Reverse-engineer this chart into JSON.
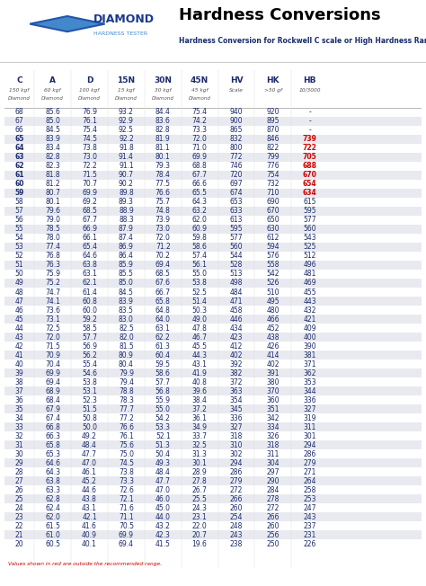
{
  "title": "Hardness Conversions",
  "subtitle": "Hardness Conversion for Rockwell C scale or High Hardness Range",
  "columns": [
    "C",
    "A",
    "D",
    "15N",
    "30N",
    "45N",
    "HV",
    "HK",
    "HB"
  ],
  "col_sub1": [
    "150 kgf",
    "60 kgf",
    "100 kgf",
    "15 kgf",
    "30 kgf",
    "45 kgf",
    "Scale",
    ">50 gf",
    "10/3000"
  ],
  "col_sub2": [
    "Diamond",
    "Diamond",
    "Diamond",
    "Diamond",
    "Diamond",
    "Diamond",
    "",
    "",
    ""
  ],
  "red_note": "Values shown in red are outside the recommended range.",
  "rows": [
    [
      68,
      85.6,
      76.9,
      93.2,
      84.4,
      75.4,
      940,
      920,
      "-"
    ],
    [
      67,
      85.0,
      76.1,
      92.9,
      83.6,
      74.2,
      900,
      895,
      "-"
    ],
    [
      66,
      84.5,
      75.4,
      92.5,
      82.8,
      73.3,
      865,
      870,
      "-"
    ],
    [
      65,
      83.9,
      74.5,
      92.2,
      81.9,
      72.0,
      832,
      846,
      "739"
    ],
    [
      64,
      83.4,
      73.8,
      91.8,
      81.1,
      71.0,
      800,
      822,
      "722"
    ],
    [
      63,
      82.8,
      73.0,
      91.4,
      80.1,
      69.9,
      772,
      799,
      "705"
    ],
    [
      62,
      82.3,
      72.2,
      91.1,
      79.3,
      68.8,
      746,
      776,
      "688"
    ],
    [
      61,
      81.8,
      71.5,
      90.7,
      78.4,
      67.7,
      720,
      754,
      "670"
    ],
    [
      60,
      81.2,
      70.7,
      90.2,
      77.5,
      66.6,
      697,
      732,
      "654"
    ],
    [
      59,
      80.7,
      69.9,
      89.8,
      76.6,
      65.5,
      674,
      710,
      "634"
    ],
    [
      58,
      80.1,
      69.2,
      89.3,
      75.7,
      64.3,
      653,
      690,
      615
    ],
    [
      57,
      79.6,
      68.5,
      88.9,
      74.8,
      63.2,
      633,
      670,
      595
    ],
    [
      56,
      79.0,
      67.7,
      88.3,
      73.9,
      62.0,
      613,
      650,
      577
    ],
    [
      55,
      78.5,
      66.9,
      87.9,
      73.0,
      60.9,
      595,
      630,
      560
    ],
    [
      54,
      78.0,
      66.1,
      87.4,
      72.0,
      59.8,
      577,
      612,
      543
    ],
    [
      53,
      77.4,
      65.4,
      86.9,
      71.2,
      58.6,
      560,
      594,
      525
    ],
    [
      52,
      76.8,
      64.6,
      86.4,
      70.2,
      57.4,
      544,
      576,
      512
    ],
    [
      51,
      76.3,
      63.8,
      85.9,
      69.4,
      56.1,
      528,
      558,
      496
    ],
    [
      50,
      75.9,
      63.1,
      85.5,
      68.5,
      55.0,
      513,
      542,
      481
    ],
    [
      49,
      75.2,
      62.1,
      85.0,
      67.6,
      53.8,
      498,
      526,
      469
    ],
    [
      48,
      74.7,
      61.4,
      84.5,
      66.7,
      52.5,
      484,
      510,
      455
    ],
    [
      47,
      74.1,
      60.8,
      83.9,
      65.8,
      51.4,
      471,
      495,
      443
    ],
    [
      46,
      73.6,
      60.0,
      83.5,
      64.8,
      50.3,
      458,
      480,
      432
    ],
    [
      45,
      73.1,
      59.2,
      83.0,
      64.0,
      49.0,
      446,
      466,
      421
    ],
    [
      44,
      72.5,
      58.5,
      82.5,
      63.1,
      47.8,
      434,
      452,
      409
    ],
    [
      43,
      72.0,
      57.7,
      82.0,
      62.2,
      46.7,
      423,
      438,
      400
    ],
    [
      42,
      71.5,
      56.9,
      81.5,
      61.3,
      45.5,
      412,
      426,
      390
    ],
    [
      41,
      70.9,
      56.2,
      80.9,
      60.4,
      44.3,
      402,
      414,
      381
    ],
    [
      40,
      70.4,
      55.4,
      80.4,
      59.5,
      43.1,
      392,
      402,
      371
    ],
    [
      39,
      69.9,
      54.6,
      79.9,
      58.6,
      41.9,
      382,
      391,
      362
    ],
    [
      38,
      69.4,
      53.8,
      79.4,
      57.7,
      40.8,
      372,
      380,
      353
    ],
    [
      37,
      68.9,
      53.1,
      78.8,
      56.8,
      39.6,
      363,
      370,
      344
    ],
    [
      36,
      68.4,
      52.3,
      78.3,
      55.9,
      38.4,
      354,
      360,
      336
    ],
    [
      35,
      67.9,
      51.5,
      77.7,
      55.0,
      37.2,
      345,
      351,
      327
    ],
    [
      34,
      67.4,
      50.8,
      77.2,
      54.2,
      36.1,
      336,
      342,
      319
    ],
    [
      33,
      66.8,
      50.0,
      76.6,
      53.3,
      34.9,
      327,
      334,
      311
    ],
    [
      32,
      66.3,
      49.2,
      76.1,
      52.1,
      33.7,
      318,
      326,
      301
    ],
    [
      31,
      65.8,
      48.4,
      75.6,
      51.3,
      32.5,
      310,
      318,
      294
    ],
    [
      30,
      65.3,
      47.7,
      75.0,
      50.4,
      31.3,
      302,
      311,
      286
    ],
    [
      29,
      64.6,
      47.0,
      74.5,
      49.3,
      30.1,
      294,
      304,
      279
    ],
    [
      28,
      64.3,
      46.1,
      73.8,
      48.4,
      28.9,
      286,
      297,
      271
    ],
    [
      27,
      63.8,
      45.2,
      73.3,
      47.7,
      27.8,
      279,
      290,
      264
    ],
    [
      26,
      63.3,
      44.6,
      72.6,
      47.0,
      26.7,
      272,
      284,
      258
    ],
    [
      25,
      62.8,
      43.8,
      72.1,
      46.0,
      25.5,
      266,
      278,
      253
    ],
    [
      24,
      62.4,
      43.1,
      71.6,
      45.0,
      24.3,
      260,
      272,
      247
    ],
    [
      23,
      62.0,
      42.1,
      71.1,
      44.0,
      23.1,
      254,
      266,
      243
    ],
    [
      22,
      61.5,
      41.6,
      70.5,
      43.2,
      22.0,
      248,
      260,
      237
    ],
    [
      21,
      61.0,
      40.9,
      69.9,
      42.3,
      20.7,
      243,
      256,
      231
    ],
    [
      20,
      60.5,
      40.1,
      69.4,
      41.5,
      19.6,
      238,
      250,
      226
    ]
  ],
  "red_rows": [
    65,
    64,
    63,
    62,
    61,
    60,
    59
  ],
  "row_colors_alt": [
    "#e8eaf0",
    "#ffffff"
  ],
  "header_bg": "#2b4a8a",
  "header_text": "#ffffff",
  "red_color": "#cc0000",
  "normal_color": "#1a2a6c"
}
